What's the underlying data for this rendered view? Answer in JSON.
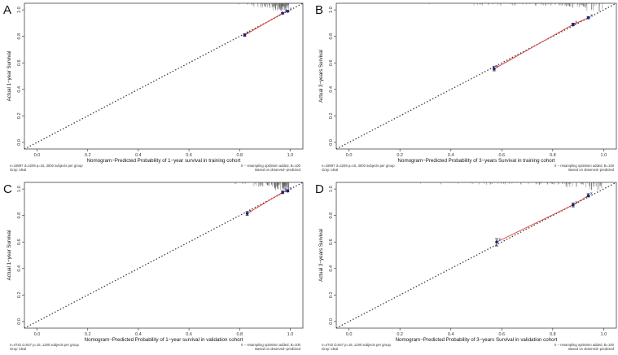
{
  "figure": {
    "panels": [
      {
        "letter": "A",
        "xlabel": "Nomogram−Predicted Probability of 1−year survival in training cohort",
        "ylabel": "Actual 1−year Survival",
        "note_left": [
          "n=18997 d=2209 p=15, 3000 subjects per group",
          "Gray: ideal"
        ],
        "note_right": [
          "X − resampling optimism added, B=100",
          "Based on observed−predicted"
        ]
      },
      {
        "letter": "B",
        "xlabel": "Nomogram−Predicted Probability of 3−years Survival in training cohort",
        "ylabel": "Actual 3−years Survival",
        "note_left": [
          "n=18997 d=2209 p=15, 3000 subjects per group",
          "Gray: ideal"
        ],
        "note_right": [
          "X − resampling optimism added, B=100",
          "Based on observed−predicted"
        ]
      },
      {
        "letter": "C",
        "xlabel": "Nomogram−Predicted Probability of 1−year survival in validation cohort",
        "ylabel": "Actual 1−year Survival",
        "note_left": [
          "n=4742 d=547 p=15, 1200 subjects per group",
          "Gray: ideal"
        ],
        "note_right": [
          "X − resampling optimism added, B=100",
          "Based on observed−predicted"
        ]
      },
      {
        "letter": "D",
        "xlabel": "Nomogram−Predicted Probability of 3−years Survival in validation cohort",
        "ylabel": "Actual 3−years Survival",
        "note_left": [
          "n=4742 d=547 p=15, 1200 subjects per group",
          "Gray: ideal"
        ],
        "note_right": [
          "X − resampling optimism added, B=100",
          "Based on observed−predicted"
        ]
      }
    ]
  },
  "chart_data": [
    {
      "type": "line",
      "panel": "A",
      "xlim": [
        -0.05,
        1.05
      ],
      "ylim": [
        -0.05,
        1.05
      ],
      "xticks": [
        "0.0",
        "0.2",
        "0.4",
        "0.6",
        "0.8",
        "1.0"
      ],
      "yticks": [
        "0.0",
        "0.2",
        "0.4",
        "0.6",
        "0.8",
        "1.0"
      ],
      "reference_line": "ideal diagonal, dotted",
      "colors": {
        "observed": "#e03c3c",
        "points": "#1a237e",
        "ideal": "#333333",
        "rug": "#555555"
      },
      "series": [
        {
          "x": [
            0.82,
            0.97,
            0.99
          ],
          "y": [
            0.81,
            0.975,
            0.99
          ],
          "ci_low": [
            0.8,
            0.97,
            0.985
          ],
          "ci_high": [
            0.82,
            0.98,
            0.995
          ]
        }
      ]
    },
    {
      "type": "line",
      "panel": "B",
      "xlim": [
        -0.05,
        1.05
      ],
      "ylim": [
        -0.05,
        1.05
      ],
      "xticks": [
        "0.0",
        "0.2",
        "0.4",
        "0.6",
        "0.8",
        "1.0"
      ],
      "yticks": [
        "0.0",
        "0.2",
        "0.4",
        "0.6",
        "0.8",
        "1.0"
      ],
      "reference_line": "ideal diagonal, dotted",
      "colors": {
        "observed": "#e03c3c",
        "points": "#1a237e",
        "ideal": "#333333",
        "rug": "#555555"
      },
      "series": [
        {
          "x": [
            0.57,
            0.88,
            0.94
          ],
          "y": [
            0.555,
            0.89,
            0.94
          ],
          "ci_low": [
            0.54,
            0.88,
            0.935
          ],
          "ci_high": [
            0.575,
            0.9,
            0.95
          ]
        }
      ]
    },
    {
      "type": "line",
      "panel": "C",
      "xlim": [
        -0.05,
        1.05
      ],
      "ylim": [
        -0.05,
        1.05
      ],
      "xticks": [
        "0.0",
        "0.2",
        "0.4",
        "0.6",
        "0.8",
        "1.0"
      ],
      "yticks": [
        "0.0",
        "0.2",
        "0.4",
        "0.6",
        "0.8",
        "1.0"
      ],
      "reference_line": "ideal diagonal, dotted",
      "colors": {
        "observed": "#e03c3c",
        "points": "#1a237e",
        "ideal": "#333333",
        "rug": "#555555"
      },
      "series": [
        {
          "x": [
            0.83,
            0.97,
            0.99
          ],
          "y": [
            0.815,
            0.975,
            0.985
          ],
          "ci_low": [
            0.8,
            0.965,
            0.98
          ],
          "ci_high": [
            0.83,
            0.985,
            0.995
          ]
        }
      ]
    },
    {
      "type": "line",
      "panel": "D",
      "xlim": [
        -0.05,
        1.05
      ],
      "ylim": [
        -0.05,
        1.05
      ],
      "xticks": [
        "0.0",
        "0.2",
        "0.4",
        "0.6",
        "0.8",
        "1.0"
      ],
      "yticks": [
        "0.0",
        "0.2",
        "0.4",
        "0.6",
        "0.8",
        "1.0"
      ],
      "reference_line": "ideal diagonal, dotted",
      "colors": {
        "observed": "#e03c3c",
        "points": "#1a237e",
        "ideal": "#333333",
        "rug": "#555555"
      },
      "series": [
        {
          "x": [
            0.58,
            0.88,
            0.94
          ],
          "y": [
            0.6,
            0.88,
            0.95
          ],
          "ci_low": [
            0.57,
            0.865,
            0.94
          ],
          "ci_high": [
            0.625,
            0.895,
            0.965
          ]
        }
      ]
    }
  ]
}
